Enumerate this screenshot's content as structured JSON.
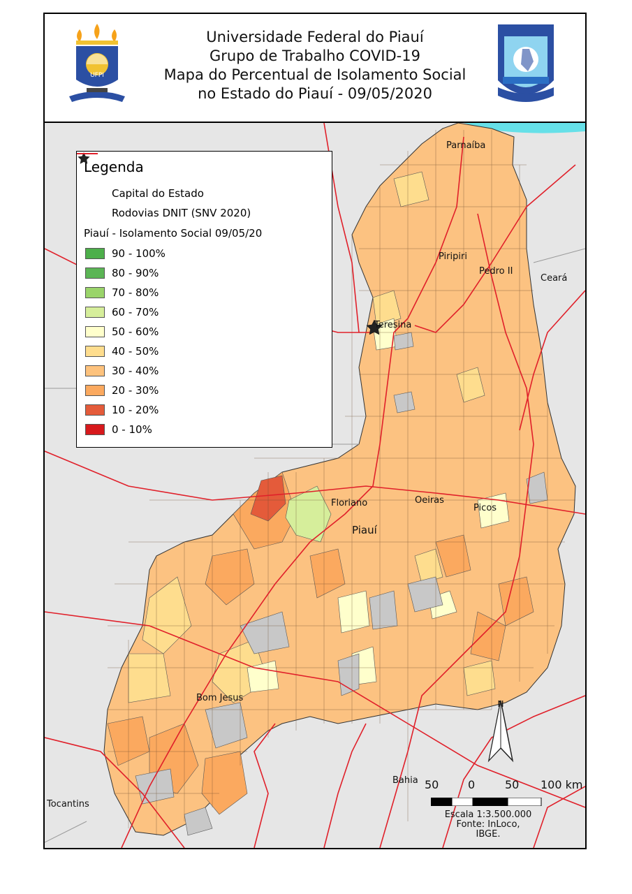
{
  "header": {
    "title_lines": [
      "Universidade Federal do Piauí",
      "Grupo de Trabalho COVID-19",
      "Mapa do Percentual de Isolamento Social",
      "no Estado do Piauí - 09/05/2020"
    ],
    "left_logo": "ufpi-logo-icon",
    "right_logo": "policia-militar-badge-icon"
  },
  "legend": {
    "title": "Legenda",
    "capital_label": "Capital do Estado",
    "roads_label": "Rodovias DNIT (SNV 2020)",
    "classes_title": "Piauí - Isolamento Social 09/05/20",
    "classes": [
      {
        "label": "90 - 100%",
        "color": "#4daf4a"
      },
      {
        "label": "80 - 90%",
        "color": "#5bb555"
      },
      {
        "label": "70 - 80%",
        "color": "#9ad46a"
      },
      {
        "label": "60 - 70%",
        "color": "#d6ee9b"
      },
      {
        "label": "50 - 60%",
        "color": "#ffffcc"
      },
      {
        "label": "40 - 50%",
        "color": "#fedd8e"
      },
      {
        "label": "30 - 40%",
        "color": "#fdc27d"
      },
      {
        "label": "20 - 30%",
        "color": "#fba95f"
      },
      {
        "label": "10 - 20%",
        "color": "#e45b3a"
      },
      {
        "label": "0 - 10%",
        "color": "#d7191c"
      }
    ],
    "road_color": "#e0202a",
    "no_data_color": "#c8c8c8"
  },
  "places": {
    "parnaiba": "Parnaíba",
    "piripiri": "Piripiri",
    "pedro_ii": "Pedro II",
    "ceara": "Ceará",
    "teresina": "Teresina",
    "floriano": "Floriano",
    "oeiras": "Oeiras",
    "picos": "Picos",
    "piaui": "Piauí",
    "bom_jesus": "Bom Jesus",
    "bahia": "Bahia",
    "tocantins": "Tocantins"
  },
  "scale": {
    "ticks": [
      "50",
      "0",
      "50",
      "100 km"
    ],
    "ratio": "Escala 1:3.500.000",
    "source": "Fonte: InLoco, IBGE.",
    "north": "N"
  }
}
